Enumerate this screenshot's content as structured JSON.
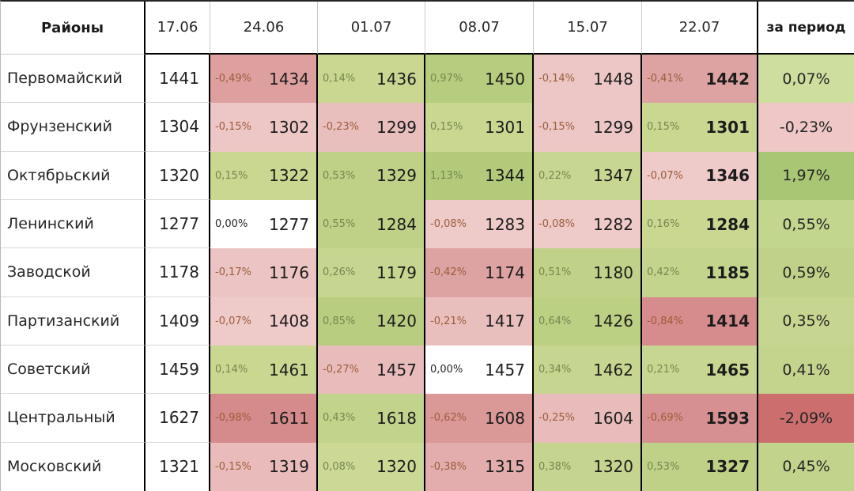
{
  "table": {
    "header": {
      "districts_label": "Районы",
      "dates": [
        "17.06",
        "24.06",
        "01.07",
        "08.07",
        "15.07",
        "22.07"
      ],
      "period_label": "за период"
    },
    "rows": [
      {
        "name": "Первомайский",
        "base": "1441",
        "cells": [
          {
            "pct": "-0,49%",
            "value": "1434",
            "bg": "#dda09e"
          },
          {
            "pct": "0,14%",
            "value": "1436",
            "bg": "#c9d791"
          },
          {
            "pct": "0,97%",
            "value": "1450",
            "bg": "#b6cc7e"
          },
          {
            "pct": "-0,14%",
            "value": "1448",
            "bg": "#ecc7c6"
          },
          {
            "pct": "-0,41%",
            "value": "1442",
            "bg": "#dda3a2"
          }
        ],
        "period": {
          "pct": "0,07%",
          "bg": "#cede9f"
        }
      },
      {
        "name": "Фрунзенский",
        "base": "1304",
        "cells": [
          {
            "pct": "-0,15%",
            "value": "1302",
            "bg": "#ecc7c6"
          },
          {
            "pct": "-0,23%",
            "value": "1299",
            "bg": "#e9bfbe"
          },
          {
            "pct": "0,15%",
            "value": "1301",
            "bg": "#c9d791"
          },
          {
            "pct": "-0,15%",
            "value": "1299",
            "bg": "#ecc7c6"
          },
          {
            "pct": "0,15%",
            "value": "1301",
            "bg": "#c9d791"
          }
        ],
        "period": {
          "pct": "-0,23%",
          "bg": "#eec7c6"
        }
      },
      {
        "name": "Октябрьский",
        "base": "1320",
        "cells": [
          {
            "pct": "0,15%",
            "value": "1322",
            "bg": "#c9d791"
          },
          {
            "pct": "0,53%",
            "value": "1329",
            "bg": "#bed187"
          },
          {
            "pct": "1,13%",
            "value": "1344",
            "bg": "#b2ca7a"
          },
          {
            "pct": "0,22%",
            "value": "1347",
            "bg": "#c7d690"
          },
          {
            "pct": "-0,07%",
            "value": "1346",
            "bg": "#eecac9"
          }
        ],
        "period": {
          "pct": "1,97%",
          "bg": "#a9c674"
        }
      },
      {
        "name": "Ленинский",
        "base": "1277",
        "cells": [
          {
            "pct": "0,00%",
            "value": "1277",
            "bg": "#ffffff"
          },
          {
            "pct": "0,55%",
            "value": "1284",
            "bg": "#bed187"
          },
          {
            "pct": "-0,08%",
            "value": "1283",
            "bg": "#eecac9"
          },
          {
            "pct": "-0,08%",
            "value": "1282",
            "bg": "#eecac9"
          },
          {
            "pct": "0,16%",
            "value": "1284",
            "bg": "#c9d791"
          }
        ],
        "period": {
          "pct": "0,55%",
          "bg": "#c3d68e"
        }
      },
      {
        "name": "Заводской",
        "base": "1178",
        "cells": [
          {
            "pct": "-0,17%",
            "value": "1176",
            "bg": "#ebc4c3"
          },
          {
            "pct": "0,26%",
            "value": "1179",
            "bg": "#c6d58f"
          },
          {
            "pct": "-0,42%",
            "value": "1174",
            "bg": "#dda3a2"
          },
          {
            "pct": "0,51%",
            "value": "1180",
            "bg": "#c0d289"
          },
          {
            "pct": "0,42%",
            "value": "1185",
            "bg": "#c3d48c"
          }
        ],
        "period": {
          "pct": "0,59%",
          "bg": "#c0d289"
        }
      },
      {
        "name": "Партизанский",
        "base": "1409",
        "cells": [
          {
            "pct": "-0,07%",
            "value": "1408",
            "bg": "#eecac9"
          },
          {
            "pct": "0,85%",
            "value": "1420",
            "bg": "#b8cd80"
          },
          {
            "pct": "-0,21%",
            "value": "1417",
            "bg": "#e9bfbe"
          },
          {
            "pct": "0,64%",
            "value": "1426",
            "bg": "#bcd084"
          },
          {
            "pct": "-0,84%",
            "value": "1414",
            "bg": "#d68b8c"
          }
        ],
        "period": {
          "pct": "0,35%",
          "bg": "#c6d58f"
        }
      },
      {
        "name": "Советский",
        "base": "1459",
        "cells": [
          {
            "pct": "0,14%",
            "value": "1461",
            "bg": "#c9d791"
          },
          {
            "pct": "-0,27%",
            "value": "1457",
            "bg": "#e8bcbb"
          },
          {
            "pct": "0,00%",
            "value": "1457",
            "bg": "#ffffff"
          },
          {
            "pct": "0,34%",
            "value": "1462",
            "bg": "#c6d58f"
          },
          {
            "pct": "0,21%",
            "value": "1465",
            "bg": "#c7d690"
          }
        ],
        "period": {
          "pct": "0,41%",
          "bg": "#c4d48d"
        }
      },
      {
        "name": "Центральный",
        "base": "1627",
        "cells": [
          {
            "pct": "-0,98%",
            "value": "1611",
            "bg": "#d58a8b"
          },
          {
            "pct": "0,43%",
            "value": "1618",
            "bg": "#c2d38b"
          },
          {
            "pct": "-0,62%",
            "value": "1608",
            "bg": "#da9897"
          },
          {
            "pct": "-0,25%",
            "value": "1604",
            "bg": "#e8bcbb"
          },
          {
            "pct": "-0,69%",
            "value": "1593",
            "bg": "#d79091"
          }
        ],
        "period": {
          "pct": "-2,09%",
          "bg": "#cd6e6e"
        }
      },
      {
        "name": "Московский",
        "base": "1321",
        "cells": [
          {
            "pct": "-0,15%",
            "value": "1319",
            "bg": "#e9bcbb"
          },
          {
            "pct": "0,08%",
            "value": "1320",
            "bg": "#ccd995"
          },
          {
            "pct": "-0,38%",
            "value": "1315",
            "bg": "#e2adac"
          },
          {
            "pct": "0,38%",
            "value": "1320",
            "bg": "#c5d48e"
          },
          {
            "pct": "0,53%",
            "value": "1327",
            "bg": "#bed187"
          }
        ],
        "period": {
          "pct": "0,45%",
          "bg": "#c2d48c"
        }
      }
    ]
  },
  "colors": {
    "pct_negative": "#9c5d3b",
    "pct_positive": "#76884f",
    "pct_zero": "#262626",
    "value_text": "#1c1c1c",
    "border_heavy": "#000000",
    "border_light": "#d9d9d9",
    "period_max_green": "#a9c674",
    "period_max_red": "#cd6e6e"
  },
  "chart_data": {
    "type": "table",
    "title": "",
    "columns": [
      "Районы",
      "17.06",
      "24.06",
      "01.07",
      "08.07",
      "15.07",
      "22.07",
      "за период"
    ],
    "rows": [
      {
        "district": "Первомайский",
        "values": [
          1441,
          1434,
          1436,
          1450,
          1448,
          1442
        ],
        "pct_change": [
          -0.49,
          0.14,
          0.97,
          -0.14,
          -0.41
        ],
        "period_pct": 0.07
      },
      {
        "district": "Фрунзенский",
        "values": [
          1304,
          1302,
          1299,
          1301,
          1299,
          1301
        ],
        "pct_change": [
          -0.15,
          -0.23,
          0.15,
          -0.15,
          0.15
        ],
        "period_pct": -0.23
      },
      {
        "district": "Октябрьский",
        "values": [
          1320,
          1322,
          1329,
          1344,
          1347,
          1346
        ],
        "pct_change": [
          0.15,
          0.53,
          1.13,
          0.22,
          -0.07
        ],
        "period_pct": 1.97
      },
      {
        "district": "Ленинский",
        "values": [
          1277,
          1277,
          1284,
          1283,
          1282,
          1284
        ],
        "pct_change": [
          0.0,
          0.55,
          -0.08,
          -0.08,
          0.16
        ],
        "period_pct": 0.55
      },
      {
        "district": "Заводской",
        "values": [
          1178,
          1176,
          1179,
          1174,
          1180,
          1185
        ],
        "pct_change": [
          -0.17,
          0.26,
          -0.42,
          0.51,
          0.42
        ],
        "period_pct": 0.59
      },
      {
        "district": "Партизанский",
        "values": [
          1409,
          1408,
          1420,
          1417,
          1426,
          1414
        ],
        "pct_change": [
          -0.07,
          0.85,
          -0.21,
          0.64,
          -0.84
        ],
        "period_pct": 0.35
      },
      {
        "district": "Советский",
        "values": [
          1459,
          1461,
          1457,
          1457,
          1462,
          1465
        ],
        "pct_change": [
          0.14,
          -0.27,
          0.0,
          0.34,
          0.21
        ],
        "period_pct": 0.41
      },
      {
        "district": "Центральный",
        "values": [
          1627,
          1611,
          1618,
          1608,
          1604,
          1593
        ],
        "pct_change": [
          -0.98,
          0.43,
          -0.62,
          -0.25,
          -0.69
        ],
        "period_pct": -2.09
      },
      {
        "district": "Московский",
        "values": [
          1321,
          1319,
          1320,
          1315,
          1320,
          1327
        ],
        "pct_change": [
          -0.15,
          0.08,
          -0.38,
          0.38,
          0.53
        ],
        "period_pct": 0.45
      }
    ],
    "legend": "cell background: green = weekly increase, red = weekly decrease, intensity scales with magnitude",
    "grid": true
  }
}
